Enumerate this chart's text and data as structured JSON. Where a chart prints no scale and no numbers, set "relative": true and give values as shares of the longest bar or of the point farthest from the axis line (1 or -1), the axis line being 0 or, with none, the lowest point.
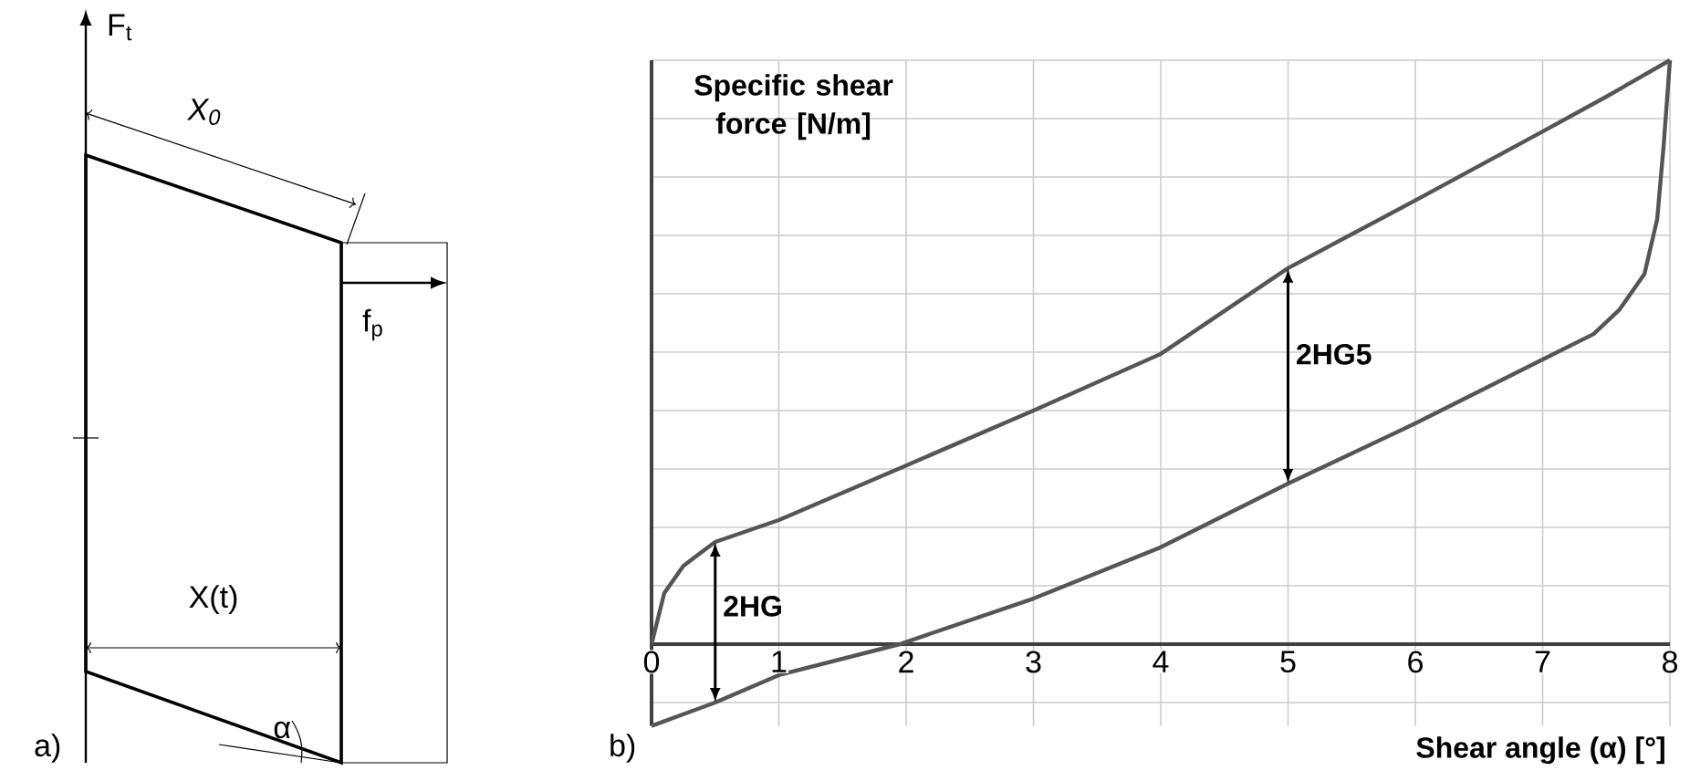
{
  "chart_data": {
    "type": "line",
    "relative": true,
    "xlabel": "Shear angle (α) [°]",
    "ylabel": "Specific shear force [N/m]",
    "xlim": [
      0,
      8
    ],
    "xticks": [
      0,
      1,
      2,
      3,
      4,
      5,
      6,
      7,
      8
    ],
    "grid": true,
    "marker": "none",
    "line_style": "solid",
    "series": [
      {
        "color": "#555555",
        "x": [
          0,
          0.1,
          0.25,
          0.5,
          1,
          2,
          3,
          4,
          5,
          6,
          7,
          7.5,
          8
        ],
        "values": [
          0,
          0.0875,
          0.134,
          0.175,
          0.2125,
          0.306,
          0.4,
          0.497,
          0.644,
          0.76,
          0.878,
          0.9375,
          1
        ]
      },
      {
        "color": "#555555",
        "x": [
          8,
          7.95,
          7.9,
          7.8,
          7.6,
          7.4,
          7,
          6,
          5,
          4,
          3,
          1.95,
          1,
          0.5,
          0
        ],
        "values": [
          1,
          0.853,
          0.728,
          0.634,
          0.572,
          0.531,
          0.4875,
          0.378,
          0.275,
          0.166,
          0.078,
          0,
          -0.053,
          -0.1,
          -0.14
        ]
      }
    ],
    "annotations": [
      {
        "text": "2HG",
        "x": 0.5,
        "y": 0.175
      },
      {
        "text": "2HG5",
        "x": 5,
        "y": 0.644
      },
      "a)",
      "b)",
      "F$_{t}$",
      "*X$_{0}$*",
      "f$_{p}$",
      "X(t)",
      "α"
    ]
  }
}
